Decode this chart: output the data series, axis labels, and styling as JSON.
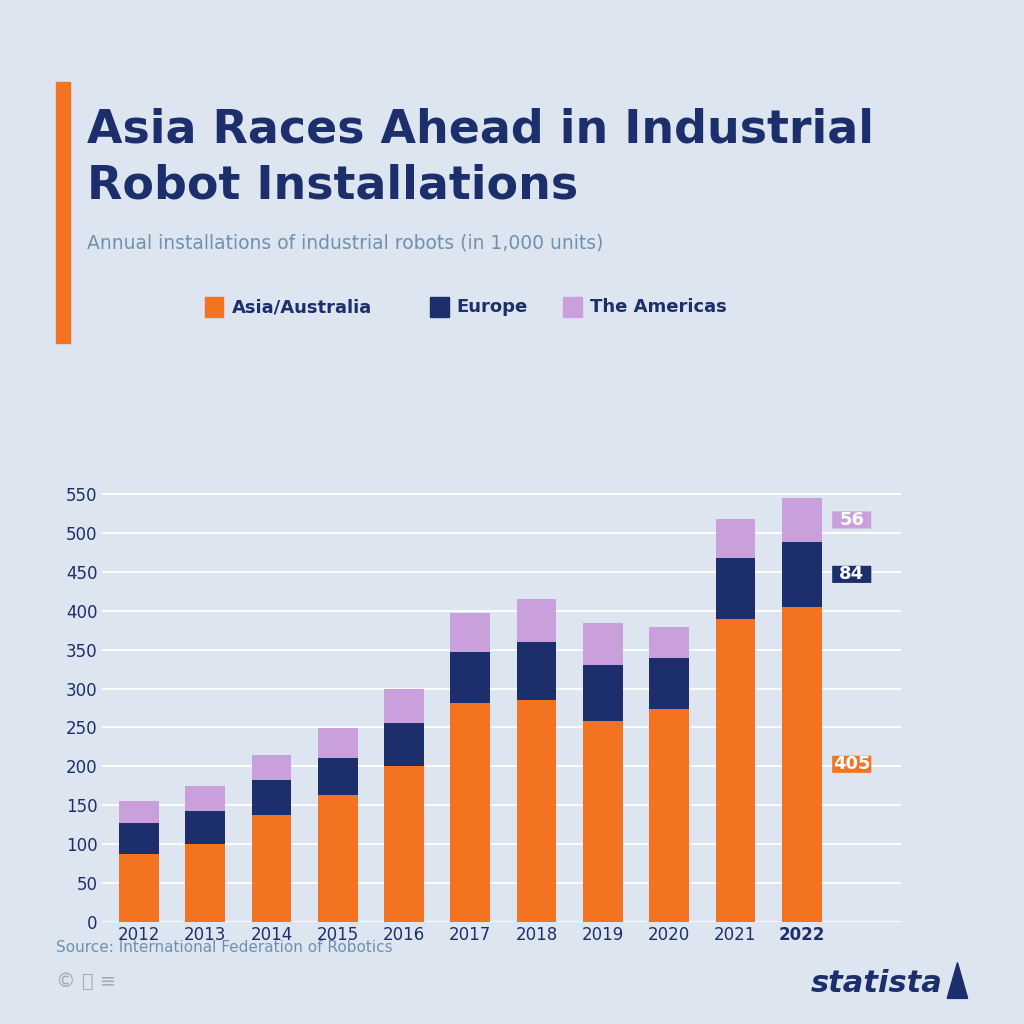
{
  "title_line1": "Asia Races Ahead in Industrial",
  "title_line2": "Robot Installations",
  "subtitle": "Annual installations of industrial robots (in 1,000 units)",
  "source": "Source: International Federation of Robotics",
  "years": [
    2012,
    2013,
    2014,
    2015,
    2016,
    2017,
    2018,
    2019,
    2020,
    2021,
    2022
  ],
  "asia": [
    87,
    100,
    137,
    163,
    200,
    281,
    285,
    258,
    274,
    390,
    405
  ],
  "europe": [
    40,
    43,
    45,
    48,
    56,
    66,
    75,
    72,
    65,
    78,
    84
  ],
  "americas": [
    28,
    32,
    32,
    38,
    43,
    50,
    55,
    55,
    40,
    50,
    56
  ],
  "color_asia": "#f47321",
  "color_europe": "#1c2e6b",
  "color_americas": "#c9a0dc",
  "background_color": "#dde6f0",
  "accent_color": "#f47321",
  "title_color": "#1c2e6b",
  "subtitle_color": "#7090b0",
  "grid_color": "#ffffff",
  "ylim": [
    0,
    580
  ],
  "yticks": [
    0,
    50,
    100,
    150,
    200,
    250,
    300,
    350,
    400,
    450,
    500,
    550
  ],
  "label_2022_asia": "405",
  "label_2022_europe": "84",
  "label_2022_americas": "56",
  "bar_width": 0.6
}
